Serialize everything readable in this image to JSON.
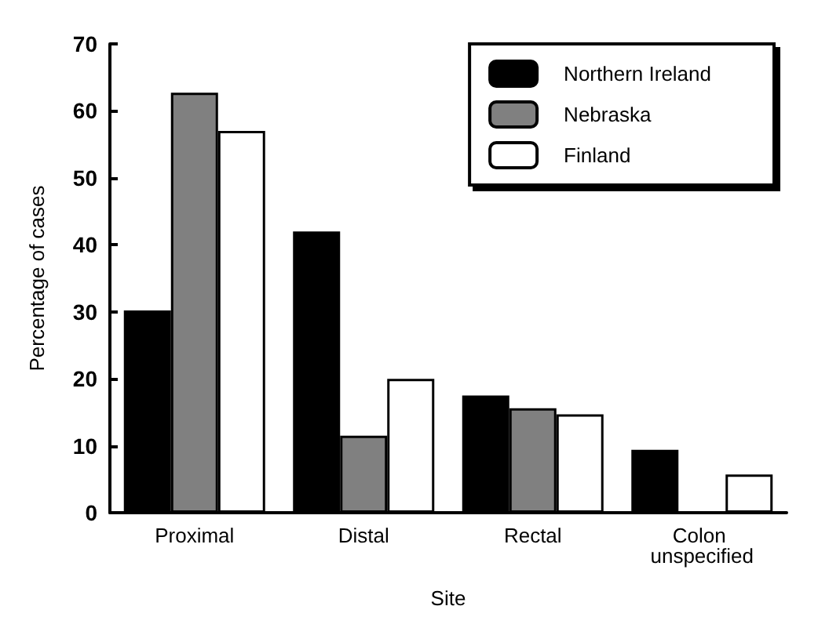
{
  "chart_data": {
    "type": "bar",
    "xlabel": "Site",
    "ylabel": "Percentage of cases",
    "categories": [
      "Proximal",
      "Distal",
      "Rectal",
      "Colon unspecified"
    ],
    "series": [
      {
        "name": "Northern Ireland",
        "color": "#000000",
        "values": [
          30.2,
          42,
          17.5,
          9.4
        ]
      },
      {
        "name": "Nebraska",
        "color": "#808080",
        "values": [
          62.7,
          11.5,
          15.6,
          null
        ]
      },
      {
        "name": "Finland",
        "color": "#ffffff",
        "values": [
          57,
          20,
          14.7,
          5.7
        ]
      }
    ],
    "ylim": [
      0,
      70
    ],
    "yticks": [
      0,
      10,
      20,
      30,
      40,
      50,
      60,
      70
    ],
    "grid": false,
    "legend": "top right"
  }
}
